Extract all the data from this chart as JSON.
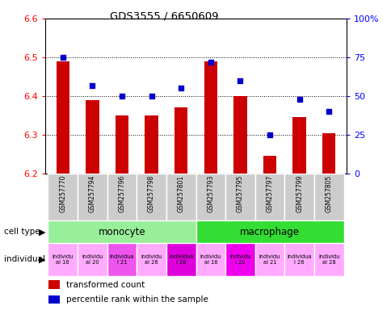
{
  "title": "GDS3555 / 6650609",
  "samples": [
    "GSM257770",
    "GSM257794",
    "GSM257796",
    "GSM257798",
    "GSM257801",
    "GSM257793",
    "GSM257795",
    "GSM257797",
    "GSM257799",
    "GSM257805"
  ],
  "red_values": [
    6.49,
    6.39,
    6.35,
    6.35,
    6.37,
    6.49,
    6.4,
    6.245,
    6.345,
    6.305
  ],
  "blue_values": [
    75,
    57,
    50,
    50,
    55,
    72,
    60,
    25,
    48,
    40
  ],
  "ylim_left": [
    6.2,
    6.6
  ],
  "ylim_right": [
    0,
    100
  ],
  "yticks_left": [
    6.2,
    6.3,
    6.4,
    6.5,
    6.6
  ],
  "yticks_right": [
    0,
    25,
    50,
    75,
    100
  ],
  "bar_color": "#CC0000",
  "dot_color": "#0000CC",
  "bar_bottom": 6.2,
  "bar_width": 0.45,
  "monocyte_color": "#99EE99",
  "macrophage_color": "#33DD33",
  "sample_box_color": "#CCCCCC",
  "indiv_colors": [
    "#FFAAFF",
    "#FFAAFF",
    "#EE55EE",
    "#FFAAFF",
    "#DD00DD",
    "#FFAAFF",
    "#EE00EE",
    "#FFAAFF",
    "#FFAAFF",
    "#FFAAFF"
  ],
  "indiv_labels": [
    "individu\nal 16",
    "individu\nal 20",
    "individua\nl 21",
    "individu\nal 26",
    "individua\nl 28",
    "individu\nal 16",
    "individu\nl 20",
    "individu\nal 21",
    "individua\nl 26",
    "individu\nal 28"
  ]
}
